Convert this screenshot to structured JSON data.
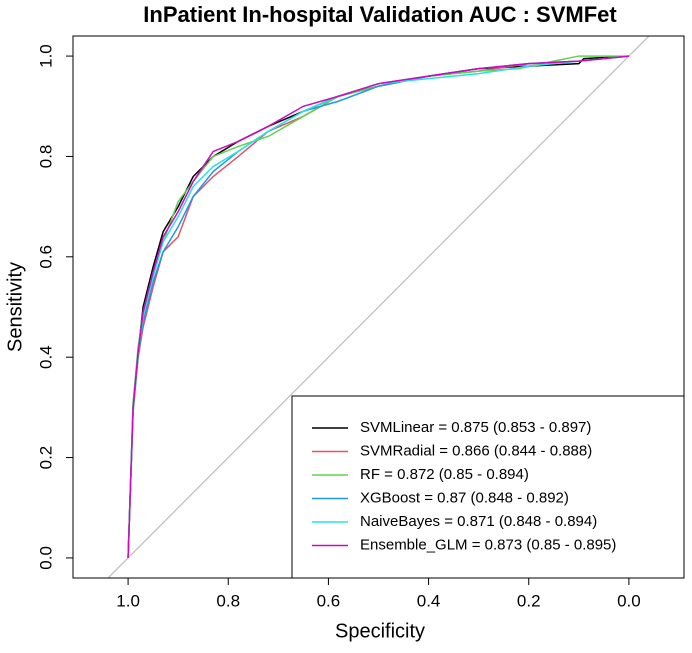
{
  "chart_data": {
    "type": "line",
    "title": "InPatient In-hospital Validation AUC : SVMFet",
    "x_label": "Specificity",
    "y_label": "Sensitivity",
    "xlim": [
      1.11,
      -0.11
    ],
    "ylim": [
      -0.04,
      1.04
    ],
    "xticks": [
      {
        "value": 1,
        "label": "1.0"
      },
      0.8,
      0.6,
      0.4,
      0.2,
      {
        "value": 0,
        "label": "0.0"
      }
    ],
    "yticks": [
      {
        "value": 0,
        "label": "0.0"
      },
      0.2,
      0.4,
      0.6,
      0.8,
      {
        "value": 1,
        "label": "1.0"
      }
    ],
    "legend": "bottom-right",
    "series": [
      {
        "name": "SVMLinear = 0.875 (0.853 - 0.897)",
        "color": "#000000",
        "x": [
          1,
          0.99,
          0.98,
          0.97,
          0.95,
          0.93,
          0.9,
          0.87,
          0.83,
          0.78,
          0.72,
          0.65,
          0.58,
          0.5,
          0.4,
          0.3,
          0.2,
          0.1,
          0.09,
          0
        ],
        "values": [
          0,
          0.3,
          0.41,
          0.5,
          0.58,
          0.65,
          0.7,
          0.76,
          0.8,
          0.83,
          0.86,
          0.89,
          0.92,
          0.94,
          0.96,
          0.975,
          0.98,
          0.985,
          0.995,
          1
        ]
      },
      {
        "name": "SVMRadial = 0.866 (0.844 - 0.888)",
        "color": "#DF536B",
        "x": [
          1,
          0.99,
          0.98,
          0.97,
          0.95,
          0.93,
          0.9,
          0.87,
          0.83,
          0.78,
          0.72,
          0.65,
          0.58,
          0.5,
          0.4,
          0.3,
          0.2,
          0.1,
          0.05,
          0
        ],
        "values": [
          0,
          0.3,
          0.4,
          0.46,
          0.54,
          0.61,
          0.64,
          0.72,
          0.76,
          0.8,
          0.85,
          0.88,
          0.92,
          0.945,
          0.96,
          0.97,
          0.985,
          0.99,
          0.995,
          1
        ]
      },
      {
        "name": "RF = 0.872 (0.85 - 0.894)",
        "color": "#61D04F",
        "x": [
          1,
          0.99,
          0.98,
          0.97,
          0.95,
          0.93,
          0.9,
          0.87,
          0.83,
          0.78,
          0.72,
          0.65,
          0.58,
          0.5,
          0.4,
          0.3,
          0.22,
          0.15,
          0.1,
          0
        ],
        "values": [
          0,
          0.31,
          0.42,
          0.49,
          0.57,
          0.63,
          0.71,
          0.75,
          0.8,
          0.82,
          0.84,
          0.88,
          0.92,
          0.94,
          0.96,
          0.97,
          0.975,
          0.99,
          1,
          1
        ]
      },
      {
        "name": "XGBoost = 0.87 (0.848 - 0.892)",
        "color": "#2297E6",
        "x": [
          1,
          0.99,
          0.98,
          0.97,
          0.95,
          0.93,
          0.9,
          0.87,
          0.83,
          0.78,
          0.72,
          0.65,
          0.58,
          0.5,
          0.4,
          0.3,
          0.2,
          0.1,
          0.05,
          0
        ],
        "values": [
          0,
          0.29,
          0.4,
          0.47,
          0.55,
          0.61,
          0.66,
          0.72,
          0.77,
          0.81,
          0.85,
          0.89,
          0.91,
          0.94,
          0.96,
          0.975,
          0.985,
          0.99,
          0.995,
          1
        ]
      },
      {
        "name": "NaiveBayes = 0.871 (0.848 - 0.894)",
        "color": "#28E2E5",
        "x": [
          1,
          0.99,
          0.98,
          0.97,
          0.95,
          0.93,
          0.9,
          0.87,
          0.83,
          0.78,
          0.72,
          0.65,
          0.58,
          0.5,
          0.4,
          0.3,
          0.2,
          0.1,
          0.05,
          0
        ],
        "values": [
          0,
          0.3,
          0.41,
          0.48,
          0.56,
          0.63,
          0.68,
          0.74,
          0.78,
          0.81,
          0.85,
          0.89,
          0.92,
          0.945,
          0.955,
          0.965,
          0.98,
          0.99,
          0.995,
          1
        ]
      },
      {
        "name": "Ensemble_GLM = 0.873 (0.85 - 0.895)",
        "color": "#CD0BBC",
        "x": [
          1,
          0.99,
          0.98,
          0.97,
          0.95,
          0.93,
          0.9,
          0.87,
          0.83,
          0.78,
          0.72,
          0.65,
          0.58,
          0.5,
          0.4,
          0.3,
          0.2,
          0.1,
          0.05,
          0
        ],
        "values": [
          0,
          0.3,
          0.41,
          0.49,
          0.57,
          0.64,
          0.69,
          0.75,
          0.81,
          0.83,
          0.86,
          0.9,
          0.92,
          0.945,
          0.96,
          0.975,
          0.985,
          0.99,
          0.995,
          1
        ]
      }
    ]
  }
}
